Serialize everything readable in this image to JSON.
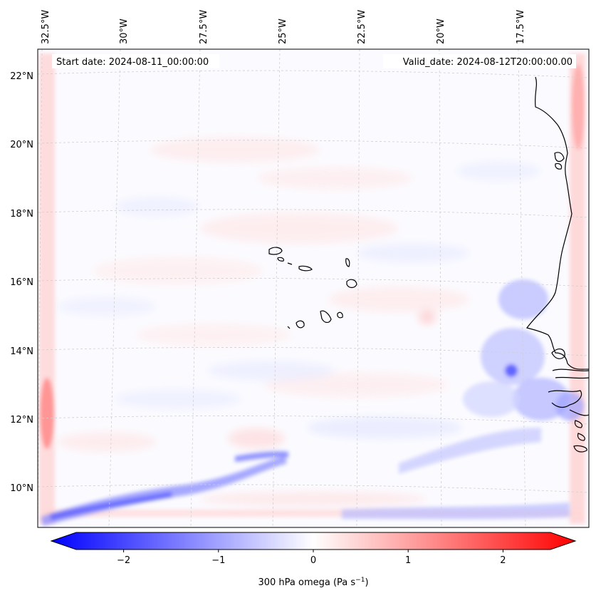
{
  "header": {
    "start_date": "Start date: 2024-08-11_00:00:00",
    "valid_date": "Valid_date: 2024-08-12T20:00:00.00"
  },
  "longitude_labels": [
    "32.5°W",
    "30°W",
    "27.5°W",
    "25°W",
    "22.5°W",
    "20°W",
    "17.5°W"
  ],
  "latitude_labels": [
    "22°N",
    "20°N",
    "18°N",
    "16°N",
    "14°N",
    "12°N",
    "10°N"
  ],
  "colorbar": {
    "ticks": [
      "−2",
      "−1",
      "0",
      "1",
      "2"
    ],
    "tick_values": [
      -2,
      -1,
      0,
      1,
      2
    ],
    "range": [
      -2.5,
      2.5
    ],
    "label": "300 hPa omega (Pa s",
    "label_sup": "−1",
    "label_end": ")",
    "colors": {
      "negative": "#0000ff",
      "zero": "#ffffff",
      "positive": "#ff0000"
    }
  }
}
